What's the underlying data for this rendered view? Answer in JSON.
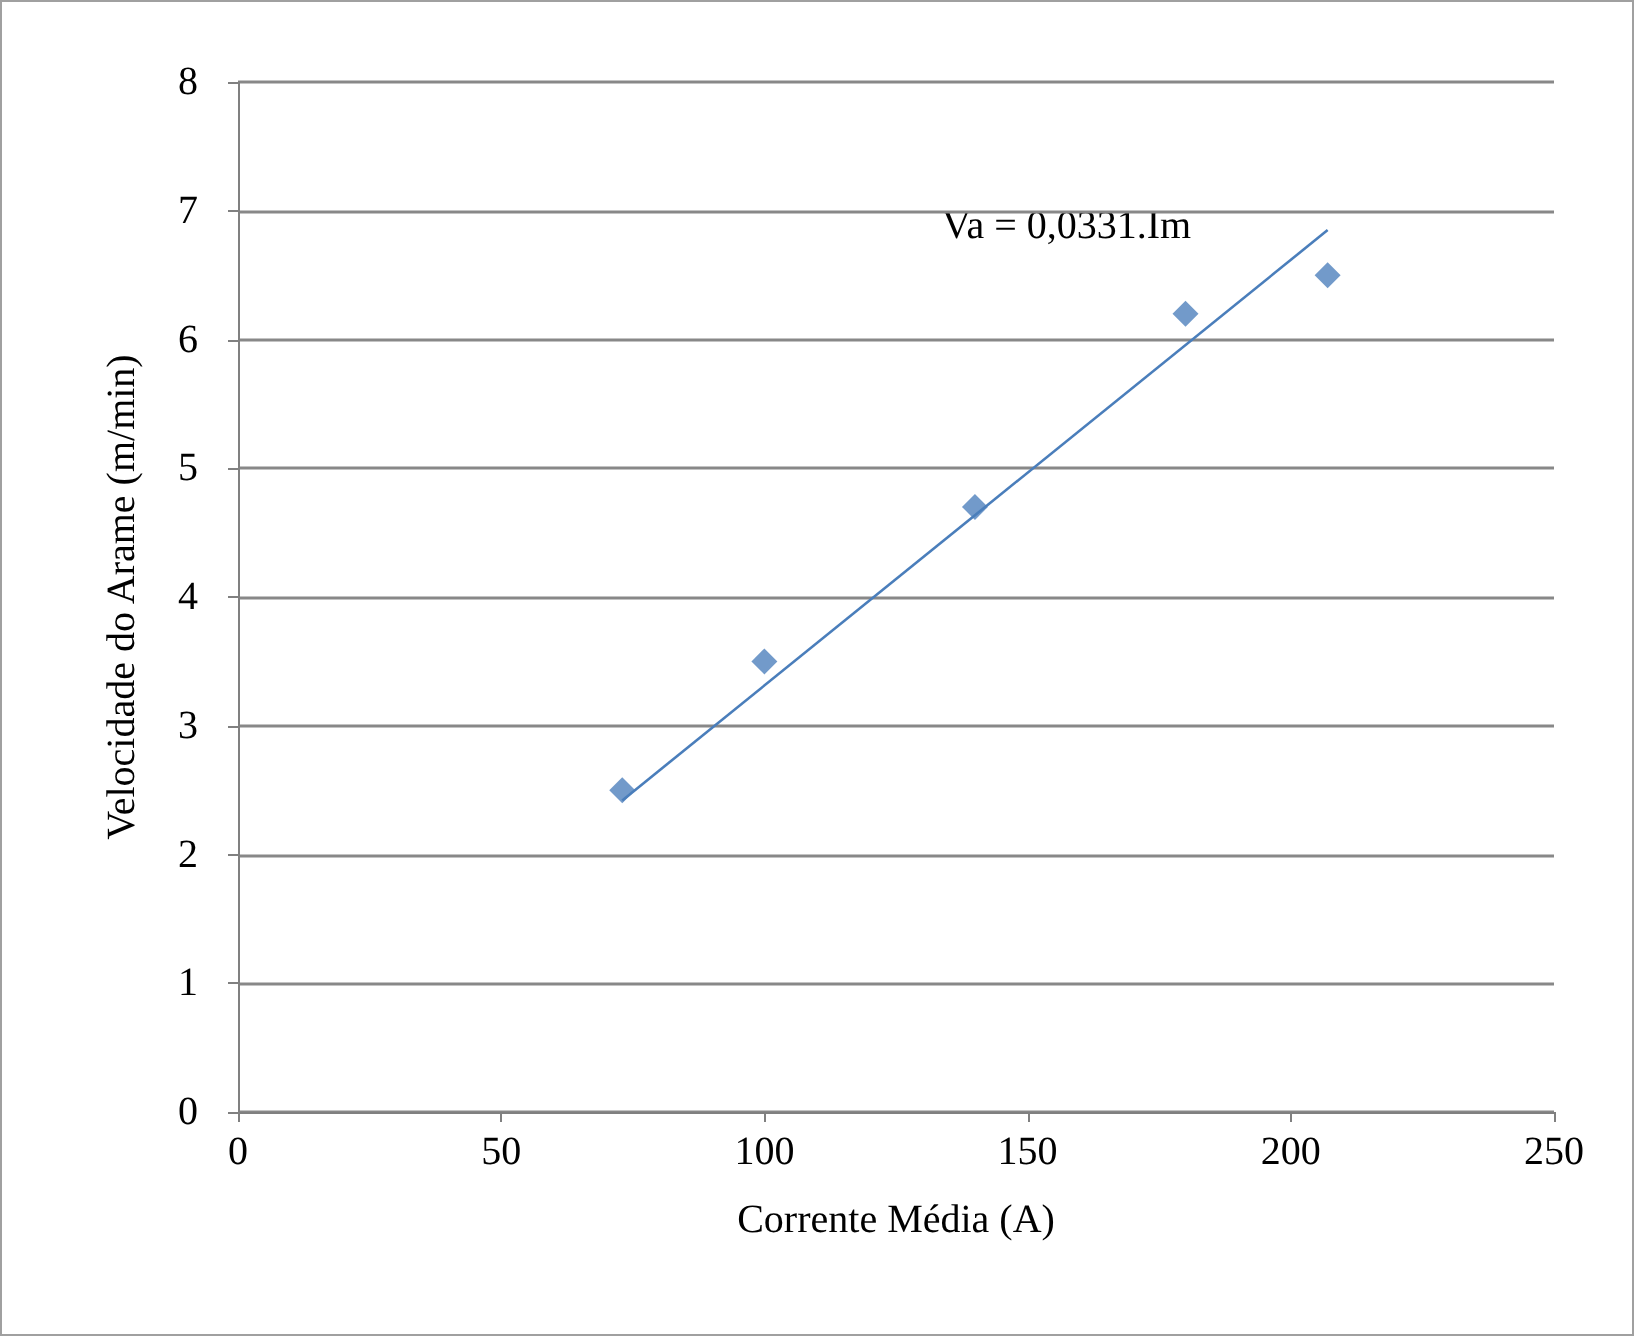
{
  "chart_data": {
    "type": "scatter",
    "xlabel": "Corrente Média (A)",
    "ylabel": "Velocidade do Arame (m/min)",
    "xlim": [
      0,
      250
    ],
    "xticks": [
      0,
      50,
      100,
      150,
      200,
      250
    ],
    "ylim": [
      0,
      8
    ],
    "yticks": [
      0,
      1,
      2,
      3,
      4,
      5,
      6,
      7,
      8
    ],
    "grid": "y",
    "marker": "diamond",
    "annotations": [
      "Va = 0,0331.Im"
    ],
    "series": [
      {
        "color": "#4f81bd",
        "x": [
          73,
          100,
          140,
          180,
          207
        ],
        "values": [
          2.5,
          3.5,
          4.7,
          6.2,
          6.5
        ]
      },
      {
        "type": "line",
        "color": "#4a7ebb",
        "marker": "none",
        "x": [
          73,
          207
        ],
        "values": [
          2.42,
          6.85
        ]
      }
    ]
  }
}
